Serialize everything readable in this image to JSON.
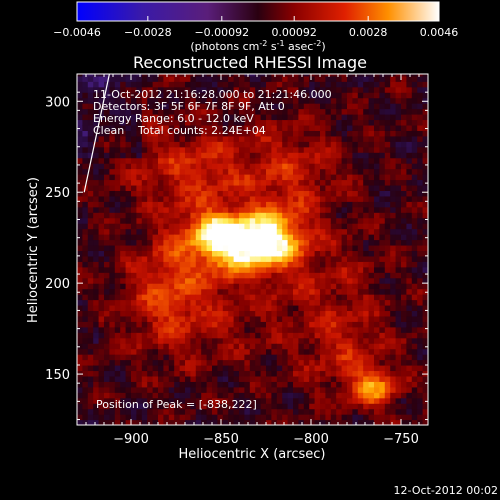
{
  "colorbar": {
    "ticks": [
      "-0.0046",
      "-0.0028",
      "-0.00092",
      "0.00092",
      "0.0028",
      "0.0046"
    ],
    "units_main": "(photons cm",
    "units_exp1": "-2",
    "units_mid": " s",
    "units_exp2": "-1",
    "units_tail": " asec",
    "units_exp3": "-2",
    "units_close": ")",
    "range": [
      -0.0046,
      0.0046
    ]
  },
  "chart_data": {
    "type": "heatmap",
    "title": "Reconstructed RHESSI Image",
    "xlabel": "Heliocentric X (arcsec)",
    "ylabel": "Heliocentric Y (arcsec)",
    "xlim": [
      -930,
      -735
    ],
    "ylim": [
      122,
      315
    ],
    "x_ticks": [
      -900,
      -850,
      -800,
      -750
    ],
    "y_ticks": [
      150,
      200,
      250,
      300
    ],
    "peak": [
      -838,
      222
    ],
    "sources": [
      {
        "x": -840,
        "y": 222,
        "sx": 18,
        "sy": 11,
        "amp": 1.0
      },
      {
        "x": -855,
        "y": 231,
        "sx": 10,
        "sy": 7,
        "amp": 0.35
      },
      {
        "x": -818,
        "y": 226,
        "sx": 12,
        "sy": 12,
        "amp": 0.45
      },
      {
        "x": -865,
        "y": 262,
        "sx": 22,
        "sy": 16,
        "amp": 0.35
      },
      {
        "x": -812,
        "y": 262,
        "sx": 20,
        "sy": 18,
        "amp": 0.3
      },
      {
        "x": -880,
        "y": 200,
        "sx": 14,
        "sy": 22,
        "amp": 0.3
      },
      {
        "x": -860,
        "y": 185,
        "sx": 30,
        "sy": 20,
        "amp": 0.22
      },
      {
        "x": -765,
        "y": 143,
        "sx": 9,
        "sy": 7,
        "amp": 0.55
      },
      {
        "x": -780,
        "y": 160,
        "sx": 18,
        "sy": 18,
        "amp": 0.25
      },
      {
        "x": -790,
        "y": 200,
        "sx": 20,
        "sy": 22,
        "amp": 0.18
      },
      {
        "x": -905,
        "y": 285,
        "sx": 15,
        "sy": 18,
        "amp": 0.12
      }
    ],
    "limb": [
      [
        -926,
        250
      ],
      [
        -912,
        315
      ]
    ]
  },
  "annotations": {
    "time_range": "11-Oct-2012 21:16:28.000 to 21:21:46.000",
    "detectors": "Detectors: 3F 5F 6F 7F 8F 9F, Att 0",
    "energy": "Energy Range: 6.0 - 12.0 keV",
    "clean_label": "Clean",
    "counts": "Total counts: 2.24E+04",
    "peak_label": "Position of Peak = [-838,222]"
  },
  "footer": {
    "timestamp": "12-Oct-2012 00:02"
  }
}
